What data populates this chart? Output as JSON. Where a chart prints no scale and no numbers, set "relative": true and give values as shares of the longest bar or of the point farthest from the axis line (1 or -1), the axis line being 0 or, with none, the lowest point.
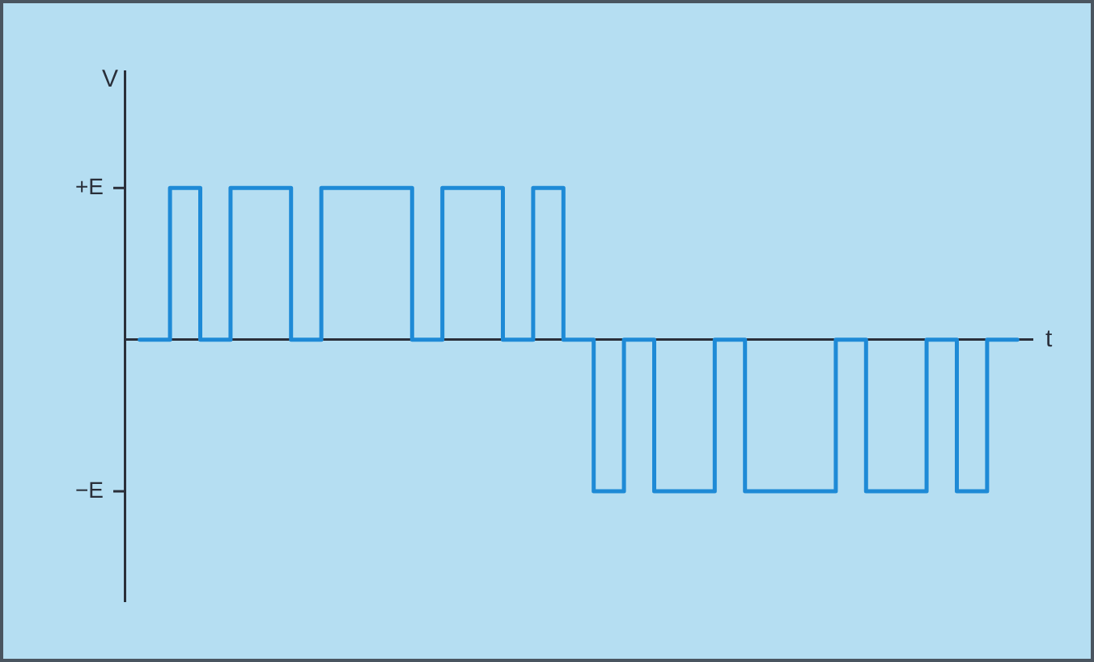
{
  "chart_data": {
    "type": "step",
    "xlabel": "t",
    "ylabel": "V",
    "categories": [
      null,
      null,
      null,
      null,
      null,
      null,
      null,
      null,
      null,
      null,
      null,
      null,
      null,
      null,
      null,
      null,
      null,
      null,
      null,
      null,
      null,
      null,
      null,
      null,
      null,
      null,
      null,
      null,
      null,
      null
    ],
    "series": [
      {
        "color": "#1e8ad6",
        "values": [
          0,
          1,
          0,
          1,
          1,
          0,
          1,
          1,
          1,
          0,
          1,
          1,
          0,
          1,
          0,
          -1,
          0,
          -1,
          -1,
          0,
          -1,
          -1,
          -1,
          0,
          -1,
          -1,
          0,
          -1,
          0,
          0
        ]
      }
    ],
    "relative": true,
    "annotations": [
      "+E",
      "−E"
    ],
    "grid": false,
    "legend": false,
    "marker": "none",
    "line_style": "solid"
  }
}
